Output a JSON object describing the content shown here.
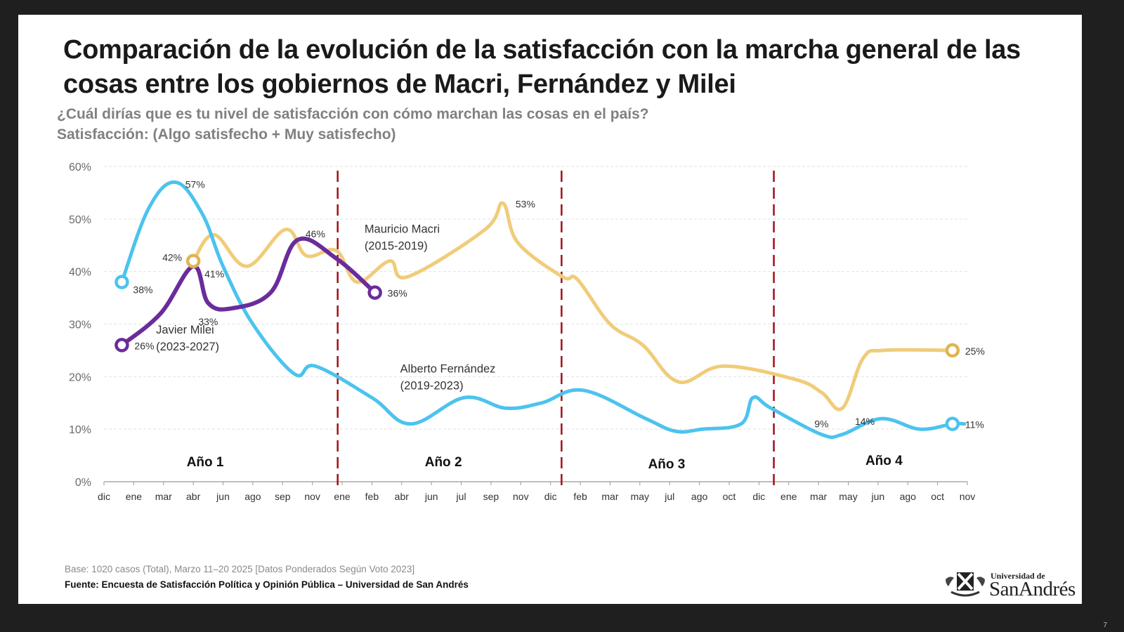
{
  "title": "Comparación de la evolución de la satisfacción con la marcha general de las cosas entre los gobiernos de Macri, Fernández y Milei",
  "subtitle_line1": "¿Cuál dirías que es tu nivel de satisfacción con cómo marchan las cosas en el país?",
  "subtitle_line2": "Satisfacción: (Algo satisfecho + Muy satisfecho)",
  "footer": {
    "base": "Base: 1020 casos (Total), Marzo 11–20 2025 [Datos Ponderados Según Voto 2023]",
    "source": "Fuente: Encuesta de Satisfacción Política y Opinión Pública – Universidad de San Andrés"
  },
  "logo": {
    "small": "Universidad de",
    "big": "SanAndrés"
  },
  "page_number": "7",
  "colors": {
    "macri": "#F0CC7A",
    "macri_marker": "#E0B453",
    "fernandez": "#4CC3EE",
    "milei": "#6A2C9B",
    "divider": "#A01018"
  },
  "chart_data": {
    "type": "line",
    "title": "",
    "xlabel": "",
    "ylabel": "",
    "ylim": [
      0,
      60
    ],
    "yticks": [
      "0%",
      "10%",
      "20%",
      "30%",
      "40%",
      "50%",
      "60%"
    ],
    "grid": true,
    "x_tick_labels": [
      "dic",
      "ene",
      "mar",
      "abr",
      "jun",
      "ago",
      "sep",
      "nov",
      "ene",
      "feb",
      "abr",
      "jun",
      "jul",
      "sep",
      "nov",
      "dic",
      "feb",
      "mar",
      "may",
      "jul",
      "ago",
      "oct",
      "dic",
      "ene",
      "mar",
      "may",
      "jun",
      "ago",
      "oct",
      "nov"
    ],
    "year_labels": [
      {
        "label": "Año 1",
        "x": 3.4
      },
      {
        "label": "Año 2",
        "x": 11.4
      },
      {
        "label": "Año 3",
        "x": 18.9
      },
      {
        "label": "Año 4",
        "x": 26.2
      }
    ],
    "year_dividers": [
      7.85,
      15.37,
      22.5
    ],
    "series": [
      {
        "name": "Mauricio Macri",
        "period": "(2015-2019)",
        "key": "macri",
        "points": [
          [
            3,
            42
          ],
          [
            3.7,
            47
          ],
          [
            4.8,
            41
          ],
          [
            6.1,
            48
          ],
          [
            6.8,
            43
          ],
          [
            7.8,
            44
          ],
          [
            8.5,
            38
          ],
          [
            9.6,
            42
          ],
          [
            10.2,
            39
          ],
          [
            12.8,
            48
          ],
          [
            13.4,
            53
          ],
          [
            13.9,
            45.5
          ],
          [
            15.4,
            39
          ],
          [
            15.9,
            38.5
          ],
          [
            17.0,
            30
          ],
          [
            18.1,
            26
          ],
          [
            19.3,
            19
          ],
          [
            20.8,
            22
          ],
          [
            23.2,
            19.5
          ],
          [
            24.1,
            17
          ],
          [
            24.8,
            14
          ],
          [
            25.5,
            23.5
          ],
          [
            26.2,
            25
          ],
          [
            28.5,
            25
          ]
        ],
        "labels": [
          {
            "text": "42%",
            "x": 3,
            "y": 42,
            "pos": "left"
          },
          {
            "text": "53%",
            "x": 13.4,
            "y": 53,
            "pos": "right"
          },
          {
            "text": "14%",
            "x": 24.8,
            "y": 14,
            "pos": "below-right"
          },
          {
            "text": "25%",
            "x": 28.5,
            "y": 25,
            "pos": "right"
          }
        ]
      },
      {
        "name": "Alberto Fernández",
        "period": "(2019-2023)",
        "key": "fernandez",
        "points": [
          [
            0.6,
            38
          ],
          [
            1.5,
            52
          ],
          [
            2.4,
            57
          ],
          [
            3.3,
            51
          ],
          [
            4.0,
            41
          ],
          [
            5.0,
            30
          ],
          [
            6.4,
            20.5
          ],
          [
            7.1,
            22
          ],
          [
            9.0,
            16
          ],
          [
            10.3,
            11
          ],
          [
            12.1,
            16
          ],
          [
            13.5,
            14
          ],
          [
            14.7,
            15
          ],
          [
            16.1,
            17.4
          ],
          [
            18.2,
            12
          ],
          [
            19.2,
            9.6
          ],
          [
            20.1,
            10
          ],
          [
            21.4,
            11
          ],
          [
            21.8,
            16
          ],
          [
            22.4,
            14
          ],
          [
            24.1,
            9
          ],
          [
            24.8,
            9
          ],
          [
            26.1,
            12
          ],
          [
            27.4,
            10
          ],
          [
            28.5,
            11
          ],
          [
            28.9,
            11
          ]
        ],
        "labels": [
          {
            "text": "38%",
            "x": 0.6,
            "y": 38,
            "pos": "right-below"
          },
          {
            "text": "57%",
            "x": 2.4,
            "y": 57,
            "pos": "right"
          },
          {
            "text": "9%",
            "x": 24.1,
            "y": 9,
            "pos": "above"
          },
          {
            "text": "11%",
            "x": 28.5,
            "y": 11,
            "pos": "right"
          }
        ]
      },
      {
        "name": "Javier Milei",
        "period": "(2023-2027)",
        "key": "milei",
        "points": [
          [
            0.6,
            26
          ],
          [
            1.9,
            32
          ],
          [
            3,
            41
          ],
          [
            3.5,
            34
          ],
          [
            4.3,
            33
          ],
          [
            5.6,
            36
          ],
          [
            6.5,
            46
          ],
          [
            7.8,
            42.5
          ],
          [
            9.1,
            36
          ]
        ],
        "labels": [
          {
            "text": "26%",
            "x": 0.6,
            "y": 26,
            "pos": "right"
          },
          {
            "text": "41%",
            "x": 3,
            "y": 41,
            "pos": "right-below"
          },
          {
            "text": "33%",
            "x": 3.5,
            "y": 30.5,
            "pos": "center"
          },
          {
            "text": "46%",
            "x": 7.1,
            "y": 47.2,
            "pos": "center"
          },
          {
            "text": "36%",
            "x": 9.1,
            "y": 36,
            "pos": "right"
          }
        ]
      }
    ],
    "series_annotations": [
      {
        "key": "macri",
        "x": 8.75,
        "y": 47.4
      },
      {
        "key": "fernandez",
        "x": 9.95,
        "y": 20.8
      },
      {
        "key": "milei",
        "x": 1.75,
        "y": 28.2
      }
    ]
  }
}
